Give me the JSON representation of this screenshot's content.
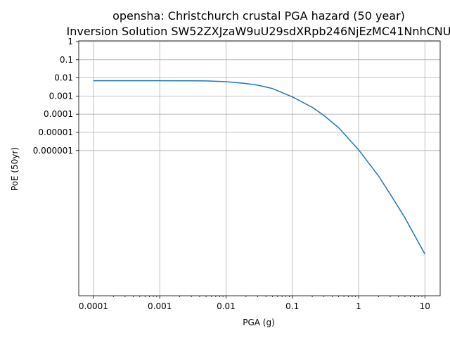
{
  "chart_data": {
    "type": "line",
    "title": "opensha: Christchurch crustal PGA hazard (50 year)",
    "subtitle": "Inversion Solution SW52ZXJzaW9uU29sdXRpb246NjEzMC41NnhCNU",
    "xlabel": "PGA (g)",
    "ylabel": "PoE (50yr)",
    "x_scale": "log",
    "xlim": [
      6e-05,
      17
    ],
    "x_ticks": [
      0.0001,
      0.001,
      0.01,
      0.1,
      1,
      10
    ],
    "x_tick_labels": [
      "0.0001",
      "0.001",
      "0.01",
      "0.1",
      "1",
      "10"
    ],
    "y_tick_labels": [
      "1",
      "0.1",
      "0.01",
      "0.001",
      "0.0001",
      "0.00001",
      "0.000001"
    ],
    "grid": true,
    "line_color": "#1f77b4",
    "series": [
      {
        "x": [
          0.0001,
          0.0003,
          0.001,
          0.003,
          0.005,
          0.01,
          0.02,
          0.03,
          0.05,
          0.1,
          0.2,
          0.3,
          0.5,
          1,
          2,
          3,
          5,
          10
        ],
        "y": [
          0.007,
          0.007,
          0.007,
          0.0069,
          0.0068,
          0.0062,
          0.0049,
          0.004,
          0.0026,
          0.0009,
          0.00024,
          8.5e-05,
          1.8e-05,
          1.1e-06,
          4e-08,
          4e-09,
          2e-10,
          2e-12
        ]
      }
    ]
  }
}
